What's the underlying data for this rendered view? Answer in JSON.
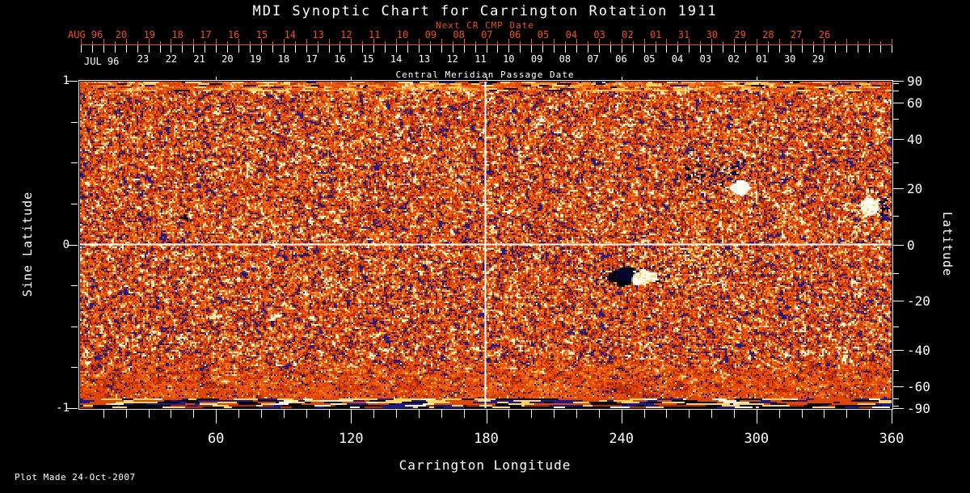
{
  "header": {
    "title": "MDI Synoptic Chart for Carrington Rotation 1911",
    "next_cr_label": "Next CR CMP Date",
    "cmp_caption": "Central Meridian Passage Date"
  },
  "footer": {
    "note": "Plot Made 24-Oct-2007"
  },
  "colors": {
    "background": "#000000",
    "axis_white": "#ffffff",
    "accent_red": "#ee5023",
    "map_palette": [
      "#1b1b8f",
      "#3a0c00",
      "#b32a02",
      "#e04407",
      "#ef5c10",
      "#fa7a1c",
      "#ffa435",
      "#ffd55e",
      "#fff6da"
    ]
  },
  "chart_data": {
    "type": "heatmap",
    "title": "MDI Synoptic Chart for Carrington Rotation 1911",
    "xlabel": "Carrington Longitude",
    "ylabel_left": "Sine Latitude",
    "ylabel_right": "Latitude",
    "xlim": [
      0,
      360
    ],
    "ylim_sine": [
      -1,
      1
    ],
    "ylim_latitude": [
      -90,
      90
    ],
    "x_tick_labels": [
      "60",
      "120",
      "180",
      "240",
      "300",
      "360"
    ],
    "x_tick_values": [
      60,
      120,
      180,
      240,
      300,
      360
    ],
    "x_minor_step_deg": 10,
    "left_tick_labels": [
      "1",
      "0",
      "-1"
    ],
    "left_tick_values": [
      1,
      0,
      -1
    ],
    "left_minor_step_sine": 0.25,
    "right_tick_labels": [
      "90",
      "60",
      "40",
      "20",
      "0",
      "-20",
      "-40",
      "-60",
      "-90"
    ],
    "right_tick_values": [
      90,
      60,
      40,
      20,
      0,
      -20,
      -40,
      -60,
      -90
    ],
    "right_minor_step_deg": 10,
    "top_next_cr_axis": {
      "month_label": "AUG 96",
      "days": [
        "20",
        "19",
        "18",
        "17",
        "16",
        "15",
        "14",
        "13",
        "12",
        "11",
        "10",
        "09",
        "08",
        "07",
        "06",
        "05",
        "04",
        "03",
        "02",
        "01",
        "31",
        "30",
        "29",
        "28",
        "27",
        "26"
      ]
    },
    "top_cmp_axis": {
      "month_label": "JUL 96",
      "days": [
        "23",
        "22",
        "21",
        "20",
        "19",
        "18",
        "17",
        "16",
        "15",
        "14",
        "13",
        "12",
        "11",
        "10",
        "09",
        "08",
        "07",
        "06",
        "05",
        "04",
        "03",
        "02",
        "01",
        "30",
        "29"
      ]
    },
    "crosshair": {
      "longitude_deg": 180,
      "latitude_deg": 0
    },
    "active_regions": [
      {
        "longitude_deg": 241,
        "latitude_deg": -11,
        "type": "bipolar sunspot group",
        "detail": "black (negative) core west, white (positive) core east, navy speckle halo"
      },
      {
        "longitude_deg": 283,
        "latitude_deg": 26,
        "type": "negative plage cluster",
        "detail": "dark navy/black speckles with small white patch on SE edge"
      },
      {
        "longitude_deg": 278,
        "latitude_deg": -5,
        "type": "positive plage",
        "detail": "diffuse cloud of white/yellow speckles"
      },
      {
        "longitude_deg": 350,
        "latitude_deg": 13,
        "type": "bipolar patch at east limb edge",
        "detail": "white patch with navy cluster at plot right edge"
      },
      {
        "longitude_deg": 46,
        "latitude_deg": 10,
        "type": "minor dark streak",
        "detail": "small black dash"
      },
      {
        "longitude_deg": 142,
        "latitude_deg": 13,
        "type": "minor dark smudge",
        "detail": "few dark pixels"
      },
      {
        "longitude_deg": 199,
        "latitude_deg": 7,
        "type": "minor negative speckles",
        "detail": "few navy dots"
      }
    ],
    "colormap_description": "orange-red magnetogram noise; strong positive field white/yellow, strong negative field navy/black; noisy streaked bands at both poles",
    "grid": "white crosshair lines at longitude 180 and latitude 0",
    "legend": "none"
  }
}
